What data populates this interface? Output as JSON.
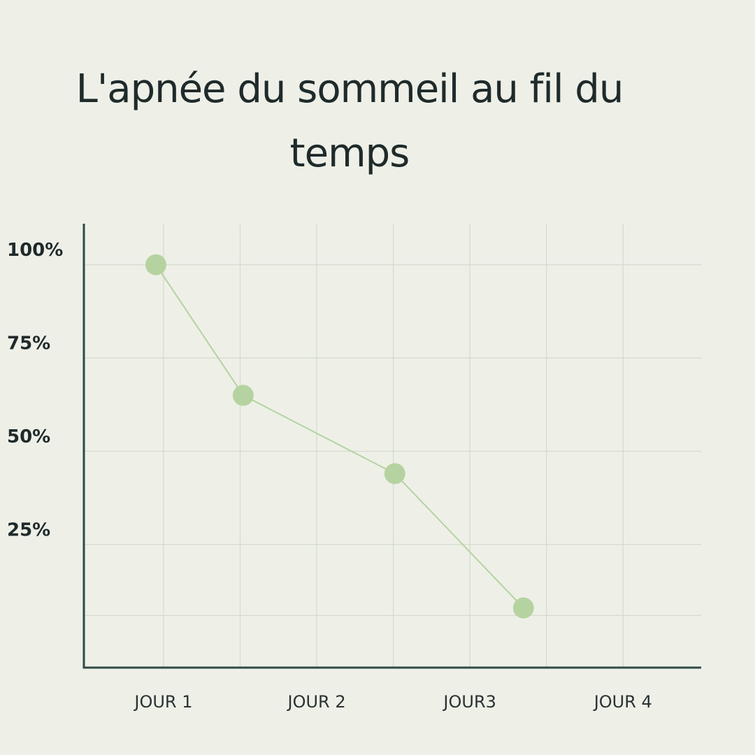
{
  "chart_data": {
    "type": "line",
    "title": "L'apnée du sommeil au fil du temps",
    "x": [
      0.95,
      1.52,
      2.51,
      3.35
    ],
    "series": [
      {
        "color": "#b5d3a0",
        "values": [
          100,
          65,
          44,
          8
        ]
      }
    ],
    "xlim": [
      0.48,
      4.51
    ],
    "xticks": [
      {
        "value": 1,
        "label": "JOUR 1"
      },
      {
        "value": 2,
        "label": "JOUR 2"
      },
      {
        "value": 3,
        "label": "JOUR3"
      },
      {
        "value": 4,
        "label": "JOUR 4"
      }
    ],
    "x_minor_ticks": [
      1.5,
      2.5,
      3.5
    ],
    "ylim": [
      -8,
      111
    ],
    "yticks": [
      {
        "value": 25,
        "label": "25%"
      },
      {
        "value": 50,
        "label": "50%"
      },
      {
        "value": 75,
        "label": "75%"
      },
      {
        "value": 100,
        "label": "100%"
      }
    ],
    "y_minor_ticks": [
      6
    ],
    "grid": true
  }
}
